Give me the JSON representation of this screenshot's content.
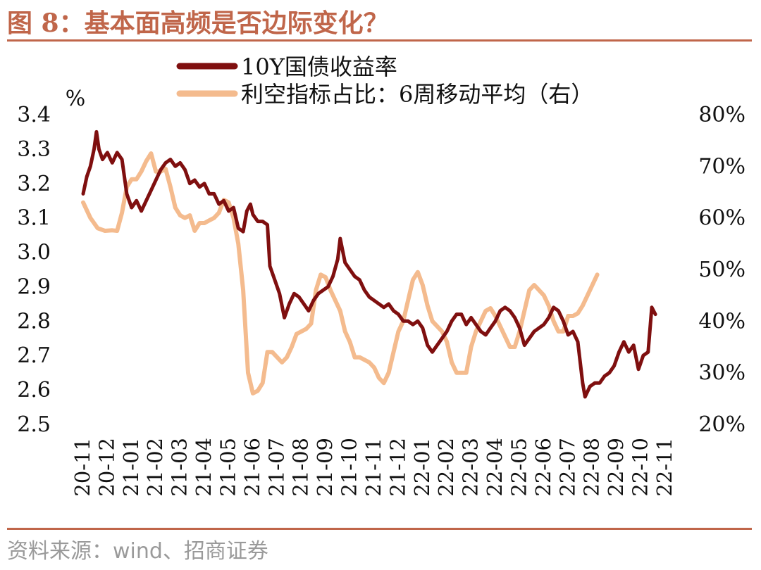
{
  "figure": {
    "title": "图 8：基本面高频是否边际变化？",
    "source": "资料来源：wind、招商证券"
  },
  "colors": {
    "accent": "#c0664a",
    "series_yield": "#7f0f0f",
    "series_ratio": "#f4bb8e",
    "source_text": "#9a9a9a"
  },
  "chart_data": {
    "type": "line",
    "left_axis_unit": "%",
    "left_ylim": [
      2.5,
      3.4
    ],
    "left_ticks": [
      "3.4",
      "3.3",
      "3.2",
      "3.1",
      "3.0",
      "2.9",
      "2.8",
      "2.7",
      "2.6",
      "2.5"
    ],
    "right_ylim": [
      20,
      80
    ],
    "right_ticks": [
      "80%",
      "70%",
      "60%",
      "50%",
      "40%",
      "30%",
      "20%"
    ],
    "x_domain": [
      0,
      24.7
    ],
    "x_ticks": [
      "20-11",
      "20-12",
      "21-01",
      "21-02",
      "21-03",
      "21-04",
      "21-05",
      "21-06",
      "21-07",
      "21-08",
      "21-09",
      "21-10",
      "21-11",
      "21-12",
      "22-01",
      "22-02",
      "22-03",
      "22-04",
      "22-05",
      "22-06",
      "22-07",
      "22-08",
      "22-09",
      "22-10",
      "22-11"
    ],
    "legend_position": "top-center",
    "series": [
      {
        "name": "10Y国债收益率",
        "axis": "left",
        "points": [
          [
            0.0,
            3.17
          ],
          [
            0.15,
            3.22
          ],
          [
            0.3,
            3.25
          ],
          [
            0.45,
            3.3
          ],
          [
            0.55,
            3.35
          ],
          [
            0.65,
            3.3
          ],
          [
            0.8,
            3.27
          ],
          [
            1.0,
            3.29
          ],
          [
            1.2,
            3.26
          ],
          [
            1.4,
            3.29
          ],
          [
            1.6,
            3.27
          ],
          [
            1.8,
            3.17
          ],
          [
            2.0,
            3.13
          ],
          [
            2.2,
            3.15
          ],
          [
            2.4,
            3.12
          ],
          [
            2.6,
            3.15
          ],
          [
            2.8,
            3.18
          ],
          [
            3.0,
            3.21
          ],
          [
            3.2,
            3.24
          ],
          [
            3.4,
            3.26
          ],
          [
            3.6,
            3.27
          ],
          [
            3.8,
            3.25
          ],
          [
            4.0,
            3.26
          ],
          [
            4.2,
            3.24
          ],
          [
            4.4,
            3.2
          ],
          [
            4.6,
            3.21
          ],
          [
            4.8,
            3.19
          ],
          [
            5.0,
            3.2
          ],
          [
            5.2,
            3.17
          ],
          [
            5.4,
            3.17
          ],
          [
            5.6,
            3.14
          ],
          [
            5.8,
            3.15
          ],
          [
            6.0,
            3.12
          ],
          [
            6.2,
            3.13
          ],
          [
            6.4,
            3.07
          ],
          [
            6.6,
            3.06
          ],
          [
            6.75,
            3.12
          ],
          [
            6.9,
            3.14
          ],
          [
            7.0,
            3.11
          ],
          [
            7.2,
            3.09
          ],
          [
            7.4,
            3.09
          ],
          [
            7.6,
            3.08
          ],
          [
            7.7,
            2.96
          ],
          [
            7.9,
            2.92
          ],
          [
            8.1,
            2.88
          ],
          [
            8.3,
            2.81
          ],
          [
            8.5,
            2.85
          ],
          [
            8.7,
            2.88
          ],
          [
            8.9,
            2.87
          ],
          [
            9.1,
            2.85
          ],
          [
            9.3,
            2.83
          ],
          [
            9.5,
            2.86
          ],
          [
            9.7,
            2.88
          ],
          [
            9.9,
            2.89
          ],
          [
            10.1,
            2.9
          ],
          [
            10.3,
            2.93
          ],
          [
            10.5,
            2.98
          ],
          [
            10.6,
            3.04
          ],
          [
            10.8,
            2.97
          ],
          [
            11.0,
            2.95
          ],
          [
            11.2,
            2.93
          ],
          [
            11.4,
            2.92
          ],
          [
            11.6,
            2.89
          ],
          [
            11.8,
            2.87
          ],
          [
            12.0,
            2.86
          ],
          [
            12.2,
            2.85
          ],
          [
            12.4,
            2.84
          ],
          [
            12.6,
            2.85
          ],
          [
            12.8,
            2.83
          ],
          [
            13.0,
            2.82
          ],
          [
            13.2,
            2.8
          ],
          [
            13.4,
            2.8
          ],
          [
            13.6,
            2.79
          ],
          [
            13.8,
            2.8
          ],
          [
            14.0,
            2.78
          ],
          [
            14.2,
            2.73
          ],
          [
            14.4,
            2.71
          ],
          [
            14.6,
            2.73
          ],
          [
            14.8,
            2.75
          ],
          [
            15.0,
            2.77
          ],
          [
            15.2,
            2.8
          ],
          [
            15.4,
            2.82
          ],
          [
            15.6,
            2.82
          ],
          [
            15.8,
            2.79
          ],
          [
            16.0,
            2.81
          ],
          [
            16.2,
            2.79
          ],
          [
            16.4,
            2.77
          ],
          [
            16.6,
            2.76
          ],
          [
            16.8,
            2.78
          ],
          [
            17.0,
            2.8
          ],
          [
            17.2,
            2.83
          ],
          [
            17.4,
            2.84
          ],
          [
            17.6,
            2.83
          ],
          [
            17.8,
            2.81
          ],
          [
            18.0,
            2.78
          ],
          [
            18.2,
            2.73
          ],
          [
            18.4,
            2.75
          ],
          [
            18.6,
            2.77
          ],
          [
            18.8,
            2.78
          ],
          [
            19.0,
            2.79
          ],
          [
            19.2,
            2.81
          ],
          [
            19.4,
            2.84
          ],
          [
            19.6,
            2.83
          ],
          [
            19.8,
            2.8
          ],
          [
            20.0,
            2.76
          ],
          [
            20.2,
            2.77
          ],
          [
            20.4,
            2.74
          ],
          [
            20.6,
            2.62
          ],
          [
            20.7,
            2.58
          ],
          [
            20.9,
            2.61
          ],
          [
            21.1,
            2.62
          ],
          [
            21.3,
            2.62
          ],
          [
            21.5,
            2.64
          ],
          [
            21.7,
            2.65
          ],
          [
            21.9,
            2.67
          ],
          [
            22.1,
            2.71
          ],
          [
            22.3,
            2.74
          ],
          [
            22.5,
            2.71
          ],
          [
            22.7,
            2.73
          ],
          [
            22.9,
            2.66
          ],
          [
            23.1,
            2.7
          ],
          [
            23.3,
            2.71
          ],
          [
            23.45,
            2.84
          ],
          [
            23.6,
            2.82
          ]
        ]
      },
      {
        "name": "利空指标占比：6周移动平均（右）",
        "axis": "right",
        "points": [
          [
            0.0,
            63
          ],
          [
            0.3,
            60
          ],
          [
            0.6,
            58
          ],
          [
            0.9,
            57.5
          ],
          [
            1.2,
            57.6
          ],
          [
            1.4,
            57.5
          ],
          [
            1.6,
            61
          ],
          [
            1.8,
            66
          ],
          [
            2.0,
            67.5
          ],
          [
            2.2,
            67.5
          ],
          [
            2.4,
            69
          ],
          [
            2.6,
            71
          ],
          [
            2.8,
            72.5
          ],
          [
            3.0,
            69
          ],
          [
            3.2,
            69
          ],
          [
            3.4,
            69.5
          ],
          [
            3.6,
            66
          ],
          [
            3.8,
            62
          ],
          [
            4.0,
            60.5
          ],
          [
            4.2,
            60
          ],
          [
            4.4,
            60.5
          ],
          [
            4.6,
            57.5
          ],
          [
            4.8,
            59
          ],
          [
            5.0,
            59
          ],
          [
            5.2,
            59.5
          ],
          [
            5.4,
            60
          ],
          [
            5.6,
            61
          ],
          [
            5.8,
            63.5
          ],
          [
            6.0,
            63
          ],
          [
            6.2,
            60
          ],
          [
            6.4,
            55
          ],
          [
            6.6,
            46
          ],
          [
            6.8,
            30
          ],
          [
            7.0,
            26
          ],
          [
            7.2,
            26.5
          ],
          [
            7.4,
            28
          ],
          [
            7.6,
            34
          ],
          [
            7.8,
            34
          ],
          [
            8.0,
            33
          ],
          [
            8.2,
            32
          ],
          [
            8.4,
            33
          ],
          [
            8.6,
            35
          ],
          [
            8.8,
            37.5
          ],
          [
            9.0,
            38
          ],
          [
            9.2,
            38.5
          ],
          [
            9.4,
            39.5
          ],
          [
            9.6,
            46
          ],
          [
            9.8,
            49
          ],
          [
            10.0,
            48.5
          ],
          [
            10.2,
            46
          ],
          [
            10.4,
            44
          ],
          [
            10.6,
            42
          ],
          [
            10.8,
            38
          ],
          [
            11.0,
            36
          ],
          [
            11.2,
            33
          ],
          [
            11.4,
            33
          ],
          [
            11.6,
            32.5
          ],
          [
            11.8,
            32
          ],
          [
            12.0,
            31
          ],
          [
            12.2,
            29
          ],
          [
            12.4,
            28
          ],
          [
            12.6,
            30
          ],
          [
            12.8,
            34
          ],
          [
            13.0,
            38
          ],
          [
            13.2,
            40
          ],
          [
            13.4,
            44
          ],
          [
            13.6,
            48
          ],
          [
            13.8,
            49.5
          ],
          [
            14.0,
            47
          ],
          [
            14.2,
            43
          ],
          [
            14.4,
            40
          ],
          [
            14.6,
            39
          ],
          [
            14.8,
            38
          ],
          [
            15.0,
            36
          ],
          [
            15.2,
            32
          ],
          [
            15.4,
            30
          ],
          [
            15.6,
            30
          ],
          [
            15.8,
            30
          ],
          [
            16.0,
            35
          ],
          [
            16.2,
            38
          ],
          [
            16.4,
            40
          ],
          [
            16.6,
            42
          ],
          [
            16.8,
            42.5
          ],
          [
            17.0,
            41
          ],
          [
            17.2,
            39
          ],
          [
            17.4,
            37
          ],
          [
            17.6,
            35
          ],
          [
            17.8,
            35
          ],
          [
            18.0,
            38
          ],
          [
            18.2,
            42
          ],
          [
            18.4,
            46
          ],
          [
            18.6,
            47
          ],
          [
            18.8,
            46
          ],
          [
            19.0,
            45
          ],
          [
            19.2,
            43
          ],
          [
            19.4,
            40
          ],
          [
            19.6,
            38
          ],
          [
            19.8,
            38
          ],
          [
            20.0,
            41
          ],
          [
            20.2,
            41
          ],
          [
            20.4,
            41.5
          ],
          [
            20.6,
            43
          ],
          [
            20.8,
            45
          ],
          [
            21.0,
            47
          ],
          [
            21.2,
            49
          ]
        ]
      }
    ]
  }
}
